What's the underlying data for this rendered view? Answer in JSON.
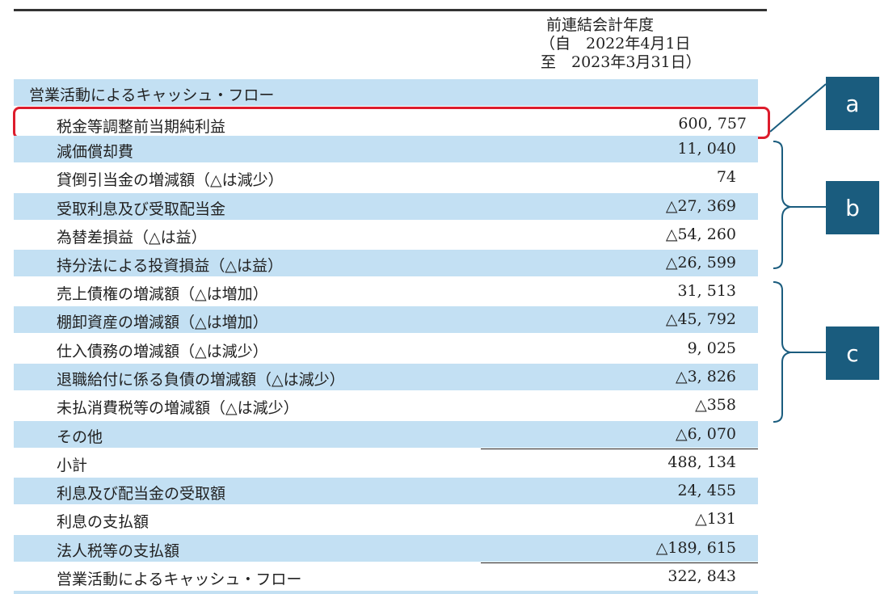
{
  "header": {
    "period_title": "前連結会計年度",
    "period_from": "（自　2022年4月1日",
    "period_to": "至　2023年3月31日）"
  },
  "section_title": "営業活動によるキャッシュ・フロー",
  "highlight_row": {
    "label": "税金等調整前当期純利益",
    "value": "600, 757"
  },
  "rows": [
    {
      "label": "減価償却費",
      "value": "11, 040"
    },
    {
      "label": "貸倒引当金の増減額（△は減少）",
      "value": "74"
    },
    {
      "label": "受取利息及び受取配当金",
      "value": "△27, 369"
    },
    {
      "label": "為替差損益（△は益）",
      "value": "△54, 260"
    },
    {
      "label": "持分法による投資損益（△は益）",
      "value": "△26, 599"
    },
    {
      "label": "売上債権の増減額（△は増加）",
      "value": "31, 513"
    },
    {
      "label": "棚卸資産の増減額（△は増加）",
      "value": "△45, 792"
    },
    {
      "label": "仕入債務の増減額（△は減少）",
      "value": "9, 025"
    },
    {
      "label": "退職給付に係る負債の増減額（△は減少）",
      "value": "△3, 826"
    },
    {
      "label": "未払消費税等の増減額（△は減少）",
      "value": "△358"
    },
    {
      "label": "その他",
      "value": "△6, 070"
    },
    {
      "label": "小計",
      "value": "488, 134"
    },
    {
      "label": "利息及び配当金の受取額",
      "value": "24, 455"
    },
    {
      "label": "利息の支払額",
      "value": "△131"
    },
    {
      "label": "法人税等の支払額",
      "value": "△189, 615"
    },
    {
      "label": "営業活動によるキャッシュ・フロー",
      "value": "322, 843"
    }
  ],
  "callouts": {
    "a": "a",
    "b": "b",
    "c": "c"
  },
  "colors": {
    "row_blue": "#c3e0f3",
    "highlight_border": "#dd1c2c",
    "callout_bg": "#1a5c7e"
  }
}
